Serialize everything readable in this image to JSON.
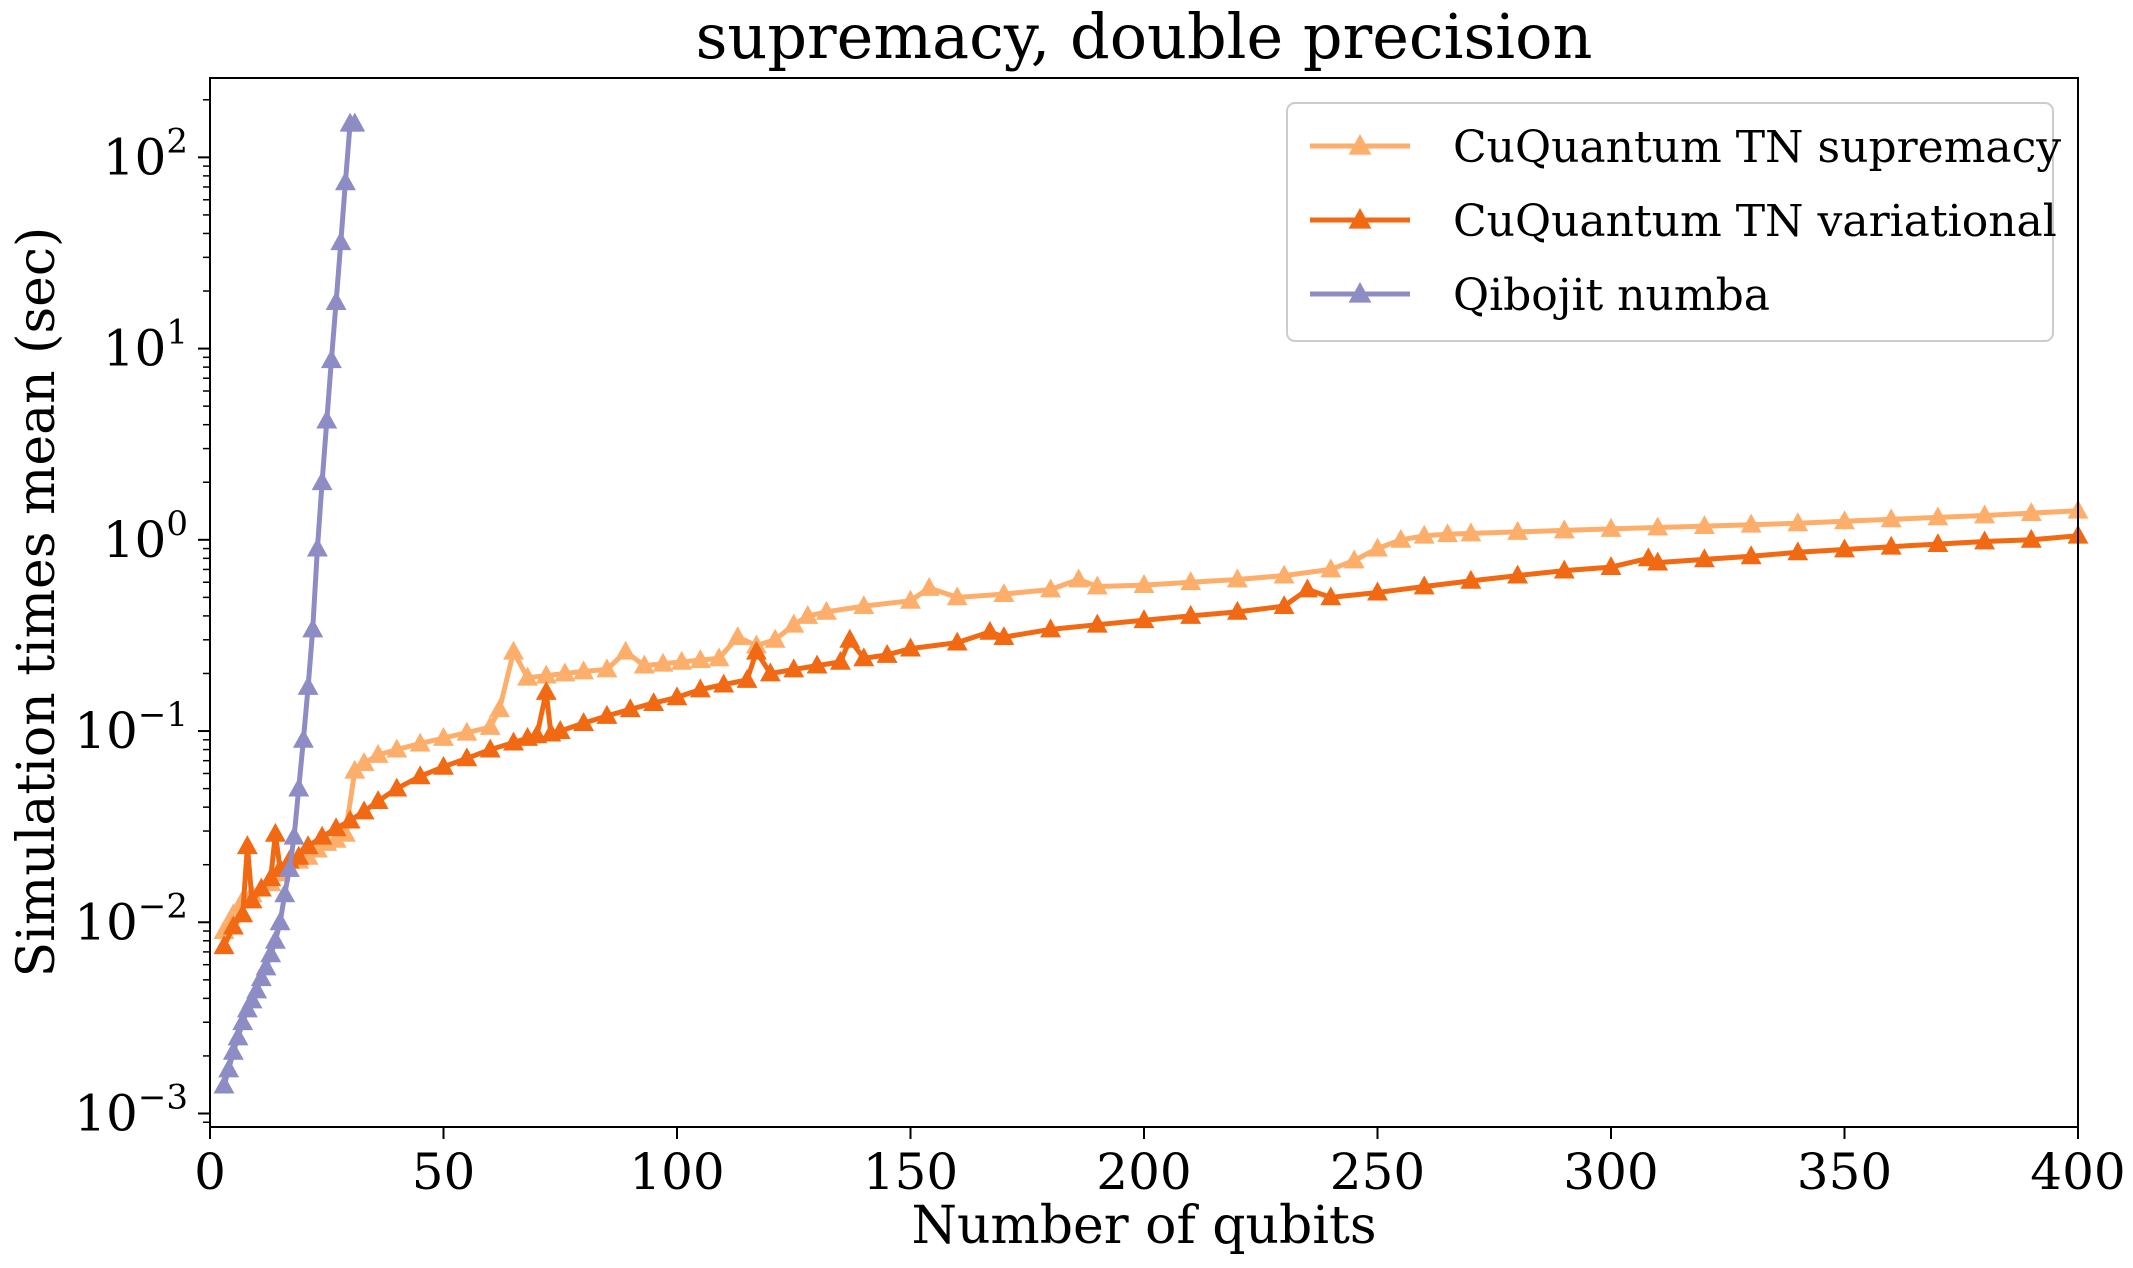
{
  "chart_data": {
    "type": "line",
    "title": "supremacy, double precision",
    "xlabel": "Number of qubits",
    "ylabel": "Simulation times mean (sec)",
    "xlim": [
      0,
      400
    ],
    "ylim": [
      0.00085,
      260
    ],
    "yscale": "log",
    "xticks": [
      0,
      50,
      100,
      150,
      200,
      250,
      300,
      350,
      400
    ],
    "xtick_labels": [
      "0",
      "50",
      "100",
      "150",
      "200",
      "250",
      "300",
      "350",
      "400"
    ],
    "yticks": [
      0.001,
      0.01,
      0.1,
      1,
      10,
      100
    ],
    "ytick_labels": [
      {
        "base": "10",
        "exp": "−3"
      },
      {
        "base": "10",
        "exp": "−2"
      },
      {
        "base": "10",
        "exp": "−1"
      },
      {
        "base": "10",
        "exp": "0"
      },
      {
        "base": "10",
        "exp": "1"
      },
      {
        "base": "10",
        "exp": "2"
      }
    ],
    "grid": false,
    "legend_position": "top-right",
    "marker": "triangle-up",
    "series": [
      {
        "name": "CuQuantum TN supremacy",
        "color": "#fdae6b",
        "x": [
          3,
          5,
          7,
          9,
          11,
          13,
          15,
          17,
          19,
          21,
          23,
          25,
          27,
          29,
          31,
          33,
          36,
          40,
          45,
          50,
          55,
          60,
          62,
          65,
          68,
          72,
          76,
          80,
          85,
          89,
          93,
          97,
          101,
          105,
          109,
          113,
          117,
          121,
          125,
          128,
          132,
          140,
          150,
          154,
          160,
          170,
          180,
          186,
          190,
          200,
          210,
          220,
          230,
          240,
          245,
          250,
          255,
          260,
          265,
          270,
          280,
          290,
          300,
          310,
          320,
          330,
          340,
          350,
          360,
          370,
          380,
          390,
          400
        ],
        "y": [
          0.009,
          0.011,
          0.013,
          0.014,
          0.015,
          0.016,
          0.018,
          0.019,
          0.021,
          0.022,
          0.024,
          0.026,
          0.027,
          0.029,
          0.062,
          0.068,
          0.075,
          0.08,
          0.086,
          0.092,
          0.098,
          0.105,
          0.13,
          0.26,
          0.19,
          0.195,
          0.2,
          0.205,
          0.21,
          0.26,
          0.22,
          0.225,
          0.23,
          0.235,
          0.24,
          0.31,
          0.28,
          0.3,
          0.36,
          0.4,
          0.42,
          0.45,
          0.48,
          0.56,
          0.5,
          0.52,
          0.55,
          0.62,
          0.57,
          0.58,
          0.6,
          0.62,
          0.65,
          0.7,
          0.78,
          0.9,
          1.0,
          1.05,
          1.07,
          1.08,
          1.1,
          1.12,
          1.14,
          1.16,
          1.18,
          1.2,
          1.22,
          1.25,
          1.28,
          1.31,
          1.34,
          1.38,
          1.42
        ]
      },
      {
        "name": "CuQuantum TN variational",
        "color": "#f16913",
        "x": [
          3,
          5,
          7,
          8,
          9,
          11,
          13,
          14,
          15,
          17,
          19,
          21,
          24,
          27,
          30,
          33,
          36,
          40,
          45,
          50,
          55,
          60,
          65,
          68,
          70,
          72,
          73,
          75,
          80,
          85,
          90,
          95,
          100,
          105,
          110,
          115,
          117,
          120,
          125,
          130,
          135,
          137,
          140,
          145,
          150,
          160,
          167,
          170,
          180,
          190,
          200,
          210,
          220,
          230,
          235,
          240,
          250,
          260,
          270,
          280,
          290,
          300,
          308,
          310,
          320,
          330,
          340,
          350,
          360,
          370,
          380,
          390,
          400
        ],
        "y": [
          0.0075,
          0.0095,
          0.011,
          0.025,
          0.013,
          0.015,
          0.017,
          0.029,
          0.019,
          0.021,
          0.022,
          0.025,
          0.028,
          0.031,
          0.034,
          0.038,
          0.043,
          0.05,
          0.058,
          0.065,
          0.072,
          0.08,
          0.087,
          0.092,
          0.095,
          0.16,
          0.097,
          0.1,
          0.11,
          0.12,
          0.13,
          0.14,
          0.15,
          0.165,
          0.175,
          0.185,
          0.26,
          0.2,
          0.21,
          0.22,
          0.23,
          0.3,
          0.24,
          0.25,
          0.27,
          0.29,
          0.33,
          0.31,
          0.34,
          0.36,
          0.38,
          0.4,
          0.42,
          0.45,
          0.55,
          0.5,
          0.53,
          0.57,
          0.61,
          0.65,
          0.69,
          0.72,
          0.8,
          0.76,
          0.79,
          0.82,
          0.86,
          0.89,
          0.92,
          0.95,
          0.98,
          1.0,
          1.05
        ]
      },
      {
        "name": "Qibojit numba",
        "color": "#8d8cc4",
        "x": [
          3,
          4,
          5,
          6,
          7,
          8,
          9,
          10,
          11,
          12,
          13,
          14,
          15,
          16,
          17,
          18,
          19,
          20,
          21,
          22,
          23,
          24,
          25,
          26,
          27,
          28,
          29,
          30,
          31
        ],
        "y": [
          0.0014,
          0.0017,
          0.0021,
          0.0025,
          0.003,
          0.0035,
          0.0039,
          0.0044,
          0.0051,
          0.0058,
          0.0068,
          0.008,
          0.01,
          0.014,
          0.019,
          0.028,
          0.05,
          0.09,
          0.17,
          0.34,
          0.9,
          2.0,
          4.2,
          8.7,
          17.5,
          36,
          74,
          150,
          150
        ]
      }
    ]
  }
}
